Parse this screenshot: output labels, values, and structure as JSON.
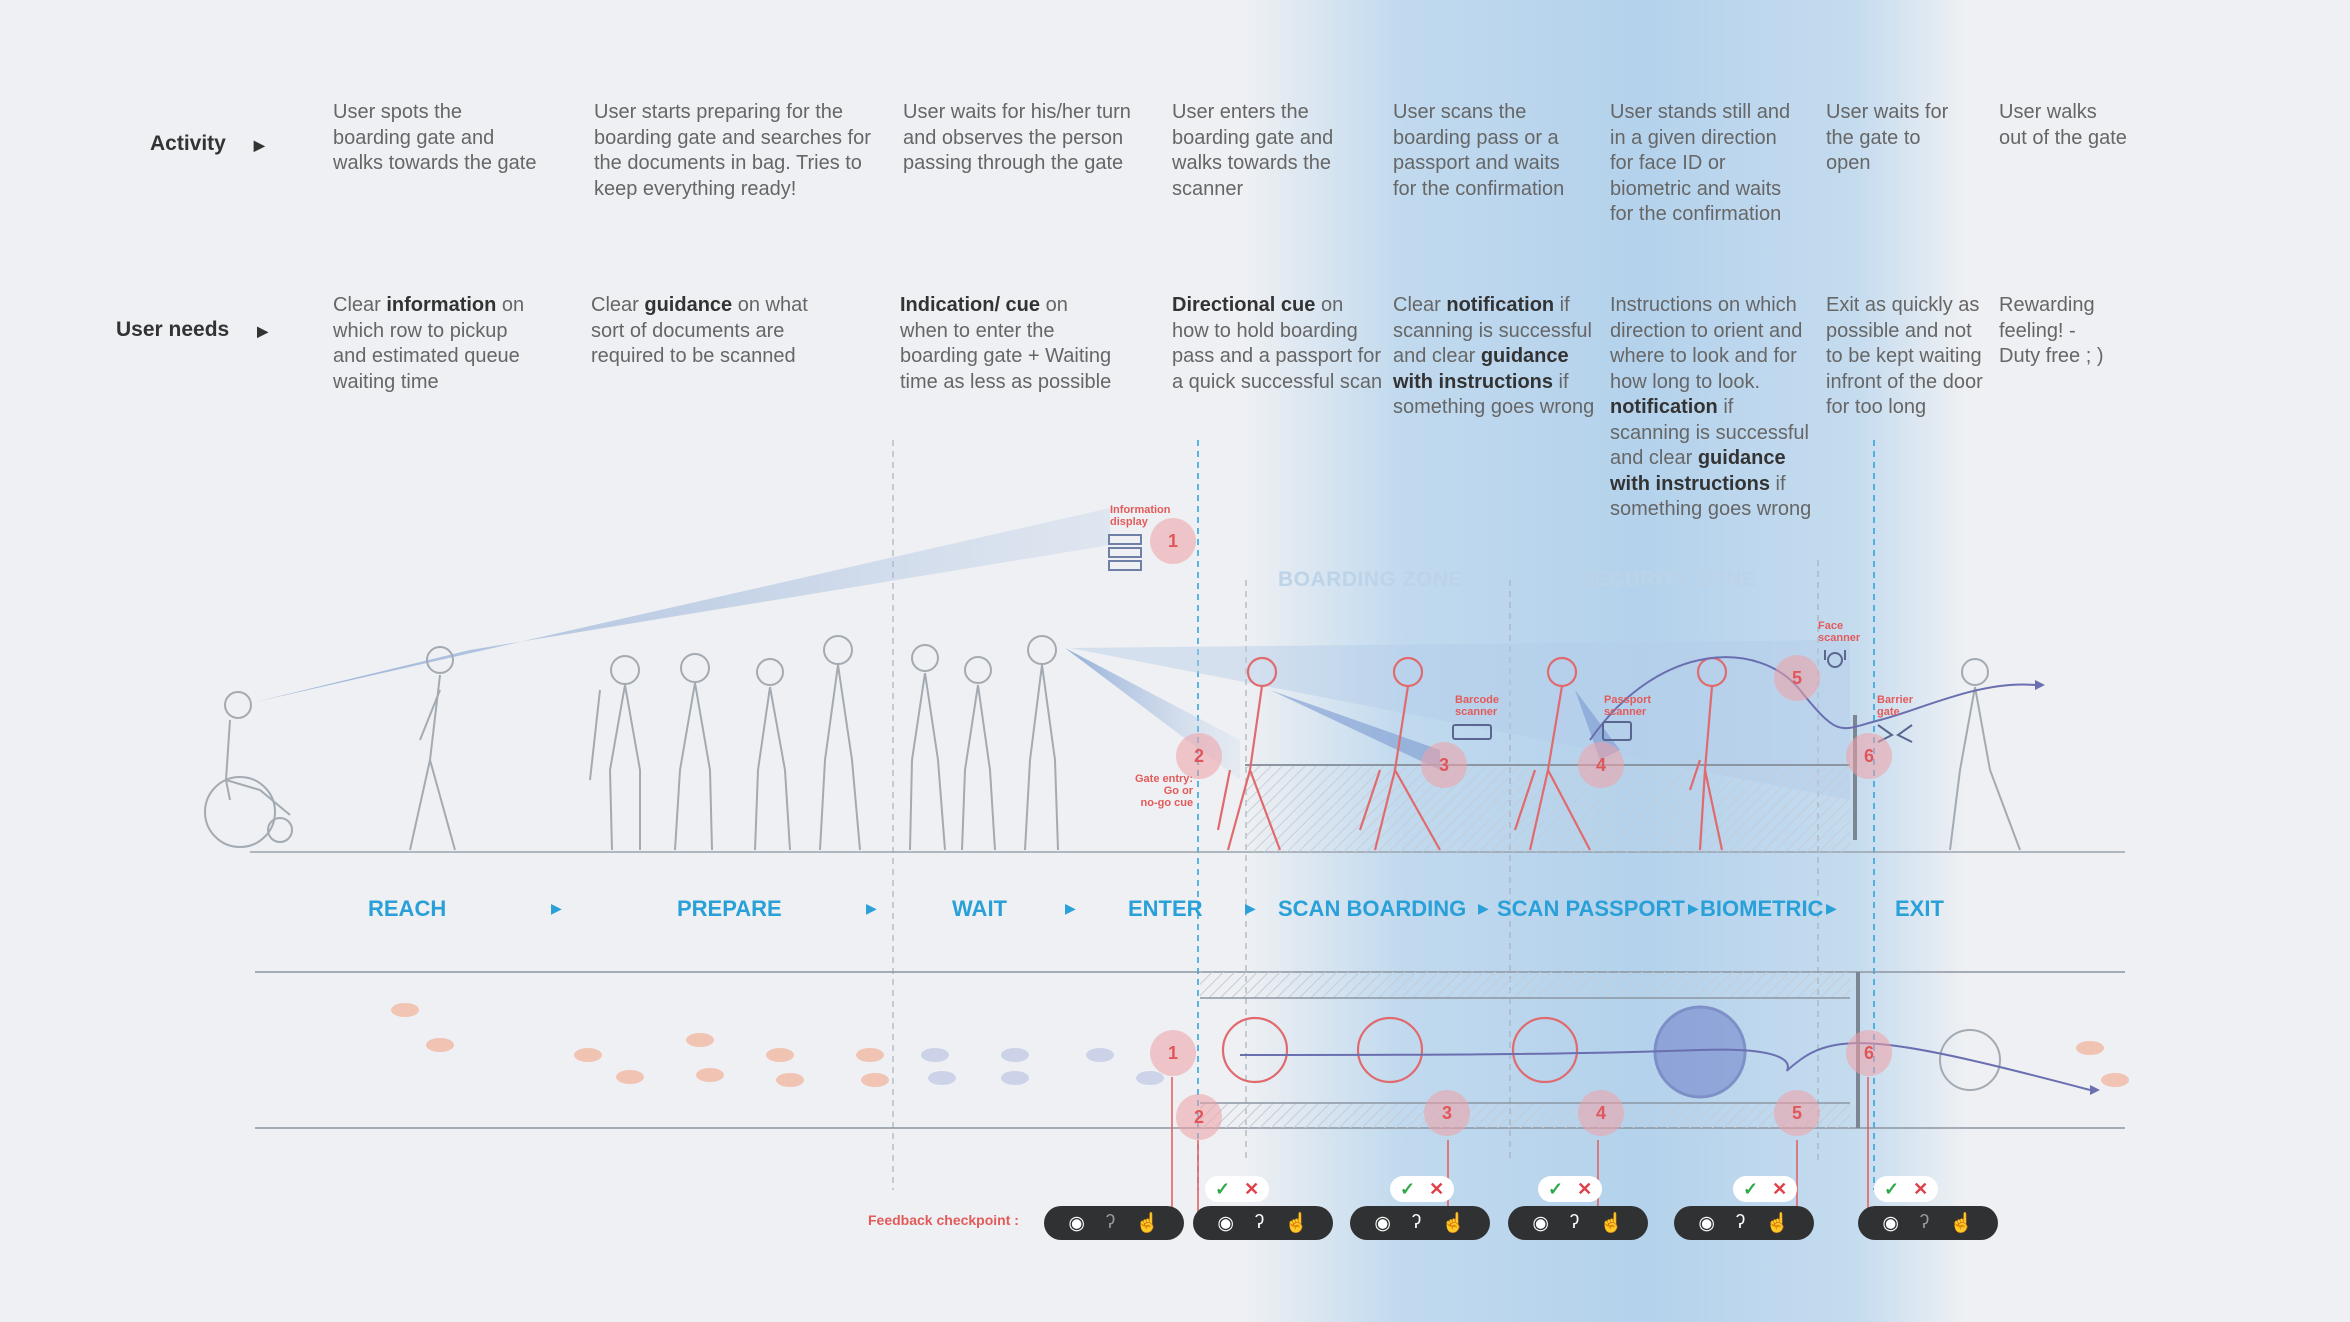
{
  "rows": {
    "activity_label": "Activity",
    "needs_label": "User needs"
  },
  "activities": [
    "User spots the\nboarding gate and\nwalks towards the gate",
    "User starts preparing for the\nboarding gate and searches for\nthe documents in bag. Tries to\nkeep everything ready!",
    "User waits for his/her turn\nand observes the person\npassing through the gate",
    "User enters the\nboarding gate and\nwalks towards the\nscanner",
    "User scans the\nboarding pass or a\npassport and waits\nfor the confirmation",
    "User stands still and\nin a given direction\nfor face ID or\nbiometric and waits\nfor the confirmation",
    "User waits for\nthe gate to\nopen",
    "User walks\nout of the gate"
  ],
  "needs": [
    {
      "a": "Clear ",
      "b": "information",
      "c": " on\nwhich row to pickup\nand estimated queue\nwaiting time"
    },
    {
      "a": "Clear ",
      "b": "guidance",
      "c": " on what\nsort of documents are\nrequired to be scanned"
    },
    {
      "a": "",
      "b": "Indication/ cue",
      "c": " on\nwhen to enter the\nboarding gate + Waiting\ntime as less as possible"
    },
    {
      "a": "",
      "b": "Directional cue",
      "c": " on\nhow to hold boarding\npass and a passport for\na quick successful scan"
    },
    {
      "a": "Clear ",
      "b": "notification",
      "c": " if\nscanning is successful\nand clear ",
      "d": "guidance\nwith instructions",
      "e": " if\nsomething goes wrong"
    },
    {
      "a": "Instructions on which\ndirection to orient and\nwhere to look and for\nhow long to look.\n",
      "b": "notification",
      "c": " if\nscanning is successful\nand clear ",
      "d": "guidance\nwith instructions",
      "e": " if\nsomething goes wrong"
    },
    {
      "a": "Exit as quickly as\npossible and not\nto be kept waiting\ninfront of the door\nfor too long",
      "b": "",
      "c": ""
    },
    {
      "a": "Rewarding\nfeeling! -\nDuty free ; )",
      "b": "",
      "c": ""
    }
  ],
  "zones": [
    "BOARDING ZONE",
    "SECURITY ZONE"
  ],
  "stages": [
    "REACH",
    "PREPARE",
    "WAIT",
    "ENTER",
    "SCAN BOARDING",
    "SCAN PASSPORT",
    "BIOMETRIC",
    "EXIT"
  ],
  "devices": {
    "info_display": "Information\ndisplay",
    "gate_entry": "Gate entry:\nGo or\nno-go cue",
    "barcode": "Barcode\nscanner",
    "passport": "Passport\nscanner",
    "face": "Face\nscanner",
    "barrier": "Barrier\ngate"
  },
  "checkpoints": [
    "1",
    "2",
    "3",
    "4",
    "5",
    "6"
  ],
  "feedback_label": "Feedback checkpoint :",
  "icons": [
    "eye-icon",
    "ear-icon",
    "hand-icon",
    "check-icon",
    "cross-icon"
  ],
  "colors": {
    "accent_blue": "#2aa0d8",
    "checkpoint_red": "#e35a5a",
    "ok_green": "#2ea84a"
  }
}
